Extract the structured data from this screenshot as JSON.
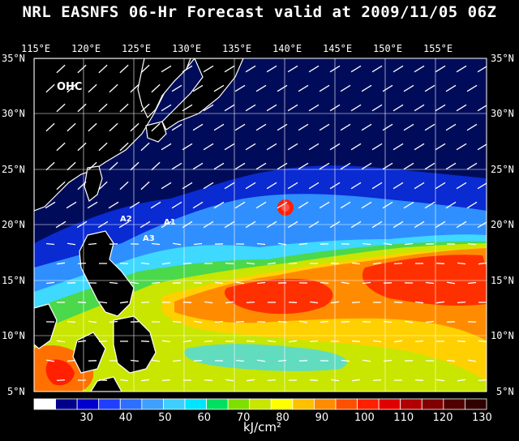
{
  "title": "NRL EASNFS  06-Hr Forecast valid at 2009/11/05 06Z",
  "field_label": "OHC",
  "lon_labels": [
    "115°E",
    "120°E",
    "125°E",
    "130°E",
    "135°E",
    "140°E",
    "145°E",
    "150°E",
    "155°E"
  ],
  "lat_labels": [
    "35°N",
    "30°N",
    "25°N",
    "20°N",
    "15°N",
    "10°N",
    "5°N"
  ],
  "colorbar": {
    "tick_labels": [
      "30",
      "40",
      "50",
      "60",
      "70",
      "80",
      "90",
      "100",
      "110",
      "120",
      "130"
    ],
    "units": "kJ/cm²",
    "colors": [
      "#ffffff",
      "#00008b",
      "#0000cd",
      "#1f3fff",
      "#2f6fff",
      "#3f9fff",
      "#3fcfff",
      "#00e5ff",
      "#00e060",
      "#7fe000",
      "#c8e600",
      "#ffff00",
      "#ffc000",
      "#ff8c00",
      "#ff5000",
      "#ff2000",
      "#e00000",
      "#b00000",
      "#800000",
      "#500000",
      "#300000"
    ]
  },
  "annotations": [
    "A1",
    "A2",
    "A3"
  ],
  "colors": {
    "land": "#000000",
    "low_ohc": "#000c5a",
    "coastline": "#ffffff",
    "grid": "#ffffff",
    "vectors": "#ffffff"
  }
}
